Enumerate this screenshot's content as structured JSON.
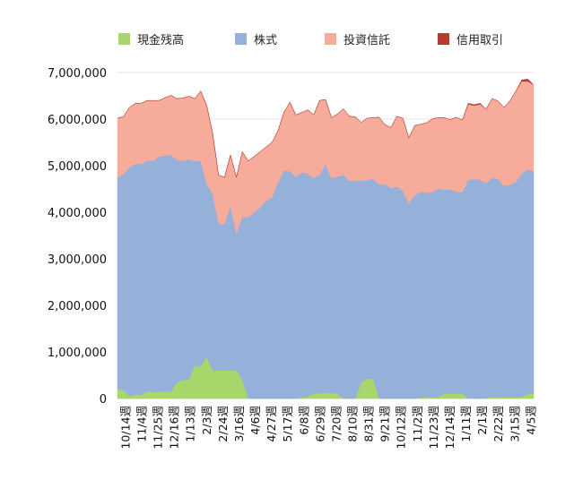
{
  "chart_data": {
    "type": "area",
    "stacked": true,
    "legend_position": "top",
    "grid": true,
    "ylim": [
      0,
      7000000
    ],
    "yticks": [
      0,
      1000000,
      2000000,
      3000000,
      4000000,
      5000000,
      6000000,
      7000000
    ],
    "ytick_labels": [
      "0",
      "1,000,000",
      "2,000,000",
      "3,000,000",
      "4,000,000",
      "5,000,000",
      "6,000,000",
      "7,000,000"
    ],
    "xtick_labels": [
      "10/14週",
      "11/4週",
      "11/25週",
      "12/16週",
      "1/13週",
      "2/3週",
      "2/24週",
      "3/16週",
      "4/6週",
      "4/27週",
      "5/17週",
      "6/8週",
      "6/29週",
      "7/20週",
      "8/10週",
      "8/31週",
      "9/21週",
      "10/12週",
      "11/2週",
      "11/23週",
      "12/14週",
      "1/11週",
      "2/1週",
      "2/22週",
      "3/15週",
      "4/5週"
    ],
    "series": [
      {
        "name": "現金残高",
        "color": "#a9d66b",
        "values": [
          200000,
          180000,
          50000,
          80000,
          80000,
          150000,
          140000,
          150000,
          160000,
          150000,
          350000,
          400000,
          400000,
          700000,
          700000,
          900000,
          600000,
          600000,
          600000,
          600000,
          600000,
          400000,
          0,
          0,
          0,
          0,
          0,
          0,
          0,
          0,
          0,
          20000,
          40000,
          100000,
          120000,
          120000,
          120000,
          100000,
          0,
          0,
          0,
          350000,
          420000,
          420000,
          0,
          0,
          0,
          0,
          0,
          0,
          0,
          20000,
          20000,
          20000,
          30000,
          100000,
          100000,
          100000,
          100000,
          0,
          0,
          0,
          0,
          30000,
          30000,
          30000,
          30000,
          30000,
          30000,
          100000,
          100000
        ]
      },
      {
        "name": "株式",
        "color": "#95b1d9",
        "values": [
          4540000,
          4640000,
          4910000,
          4960000,
          4960000,
          4960000,
          4960000,
          5050000,
          5060000,
          5080000,
          4770000,
          4700000,
          4740000,
          4400000,
          4400000,
          3700000,
          3800000,
          3150000,
          3150000,
          3530000,
          2950000,
          3500000,
          3900000,
          4000000,
          4100000,
          4250000,
          4320000,
          4650000,
          4900000,
          4880000,
          4760000,
          4840000,
          4780000,
          4640000,
          4680000,
          4910000,
          4610000,
          4670000,
          4800000,
          4680000,
          4670000,
          4330000,
          4270000,
          4300000,
          4600000,
          4600000,
          4520000,
          4550000,
          4460000,
          4200000,
          4360000,
          4420000,
          4400000,
          4420000,
          4480000,
          4380000,
          4390000,
          4340000,
          4330000,
          4700000,
          4710000,
          4700000,
          4620000,
          4710000,
          4680000,
          4540000,
          4560000,
          4620000,
          4800000,
          4820000,
          4780000
        ]
      },
      {
        "name": "投資信託",
        "color": "#f7ab9b",
        "values": [
          1280000,
          1230000,
          1290000,
          1300000,
          1300000,
          1290000,
          1300000,
          1200000,
          1240000,
          1280000,
          1320000,
          1350000,
          1350000,
          1340000,
          1500000,
          1700000,
          1300000,
          1050000,
          1000000,
          1100000,
          1200000,
          1400000,
          1200000,
          1200000,
          1200000,
          1150000,
          1180000,
          1100000,
          1250000,
          1480000,
          1330000,
          1280000,
          1380000,
          1350000,
          1600000,
          1390000,
          1300000,
          1340000,
          1420000,
          1380000,
          1380000,
          1250000,
          1330000,
          1310000,
          1440000,
          1280000,
          1300000,
          1510000,
          1560000,
          1400000,
          1500000,
          1450000,
          1500000,
          1570000,
          1520000,
          1550000,
          1500000,
          1600000,
          1550000,
          1620000,
          1580000,
          1620000,
          1590000,
          1700000,
          1680000,
          1680000,
          1800000,
          1950000,
          1980000,
          1890000,
          1860000
        ]
      },
      {
        "name": "信用取引",
        "color": "#b43a32",
        "values": [
          0,
          0,
          0,
          0,
          0,
          0,
          0,
          0,
          0,
          0,
          0,
          0,
          0,
          0,
          0,
          0,
          0,
          0,
          0,
          0,
          0,
          0,
          0,
          0,
          0,
          0,
          0,
          0,
          0,
          0,
          0,
          0,
          0,
          0,
          0,
          0,
          0,
          0,
          0,
          0,
          0,
          0,
          0,
          0,
          0,
          0,
          0,
          0,
          0,
          0,
          0,
          0,
          0,
          0,
          0,
          0,
          0,
          0,
          0,
          20000,
          20000,
          20000,
          0,
          0,
          0,
          0,
          0,
          0,
          30000,
          50000,
          0
        ]
      }
    ]
  }
}
